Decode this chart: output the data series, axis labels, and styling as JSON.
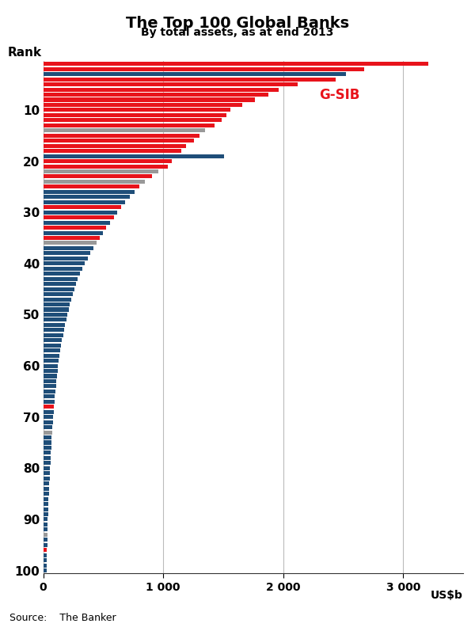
{
  "title": "The Top 100 Global Banks",
  "subtitle": "By total assets, as at end 2013",
  "source": "Source:    The Banker",
  "xlabel": "US$b",
  "ylabel": "Rank",
  "xlim": [
    0,
    3500
  ],
  "xticks": [
    0,
    1000,
    2000,
    3000
  ],
  "xticklabels": [
    "0",
    "1 000",
    "2 000",
    "3 000"
  ],
  "gsib_label": "G-SIB",
  "bar_color_gsib": "#e8131b",
  "bar_color_normal": "#1f4e79",
  "bar_color_grey": "#999999",
  "values": [
    3211,
    2674,
    2523,
    2435,
    2120,
    1960,
    1875,
    1762,
    1660,
    1560,
    1530,
    1490,
    1430,
    1350,
    1300,
    1260,
    1190,
    1150,
    1510,
    1070,
    1040,
    960,
    910,
    850,
    800,
    760,
    720,
    680,
    650,
    615,
    590,
    555,
    525,
    500,
    470,
    445,
    420,
    395,
    370,
    345,
    325,
    305,
    290,
    275,
    260,
    248,
    235,
    224,
    213,
    202,
    192,
    183,
    174,
    166,
    158,
    151,
    144,
    137,
    131,
    125,
    120,
    115,
    110,
    106,
    102,
    98,
    94,
    90,
    87,
    84,
    81,
    78,
    75,
    72,
    69,
    66,
    64,
    62,
    60,
    58,
    56,
    54,
    52,
    50,
    48,
    46,
    44,
    42,
    40,
    38,
    37,
    36,
    35,
    34,
    33,
    32,
    31,
    30,
    29,
    28
  ],
  "colors": [
    "#e8131b",
    "#e8131b",
    "#1f4e79",
    "#e8131b",
    "#e8131b",
    "#e8131b",
    "#e8131b",
    "#e8131b",
    "#e8131b",
    "#e8131b",
    "#e8131b",
    "#e8131b",
    "#e8131b",
    "#999999",
    "#e8131b",
    "#e8131b",
    "#e8131b",
    "#e8131b",
    "#1f4e79",
    "#e8131b",
    "#e8131b",
    "#999999",
    "#e8131b",
    "#999999",
    "#e8131b",
    "#1f4e79",
    "#1f4e79",
    "#1f4e79",
    "#e8131b",
    "#1f4e79",
    "#e8131b",
    "#1f4e79",
    "#e8131b",
    "#1f4e79",
    "#e8131b",
    "#999999",
    "#1f4e79",
    "#1f4e79",
    "#1f4e79",
    "#1f4e79",
    "#1f4e79",
    "#1f4e79",
    "#1f4e79",
    "#1f4e79",
    "#1f4e79",
    "#1f4e79",
    "#1f4e79",
    "#1f4e79",
    "#1f4e79",
    "#1f4e79",
    "#1f4e79",
    "#1f4e79",
    "#1f4e79",
    "#1f4e79",
    "#1f4e79",
    "#1f4e79",
    "#1f4e79",
    "#1f4e79",
    "#1f4e79",
    "#1f4e79",
    "#1f4e79",
    "#1f4e79",
    "#1f4e79",
    "#1f4e79",
    "#1f4e79",
    "#1f4e79",
    "#1f4e79",
    "#e8131b",
    "#1f4e79",
    "#1f4e79",
    "#1f4e79",
    "#1f4e79",
    "#999999",
    "#1f4e79",
    "#1f4e79",
    "#1f4e79",
    "#1f4e79",
    "#1f4e79",
    "#1f4e79",
    "#1f4e79",
    "#1f4e79",
    "#1f4e79",
    "#1f4e79",
    "#1f4e79",
    "#1f4e79",
    "#1f4e79",
    "#1f4e79",
    "#1f4e79",
    "#1f4e79",
    "#1f4e79",
    "#1f4e79",
    "#1f4e79",
    "#999999",
    "#1f4e79",
    "#1f4e79",
    "#e8131b",
    "#1f4e79",
    "#1f4e79",
    "#1f4e79",
    "#1f4e79"
  ]
}
